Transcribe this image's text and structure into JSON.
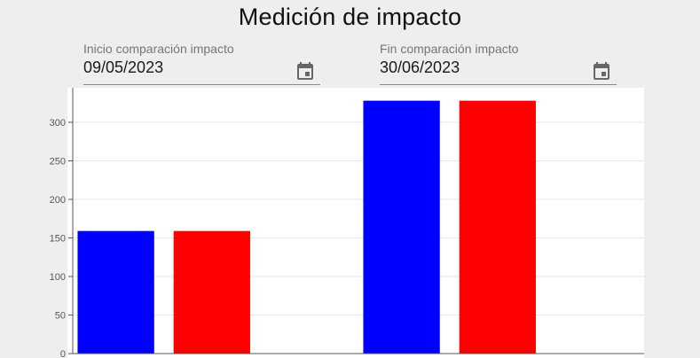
{
  "page": {
    "title": "Medición de impacto"
  },
  "date_range": {
    "start": {
      "label": "Inicio comparación impacto",
      "value": "09/05/2023",
      "icon": "calendar-icon"
    },
    "end": {
      "label": "Fin comparación impacto",
      "value": "30/06/2023",
      "icon": "calendar-icon"
    }
  },
  "chart_data": {
    "type": "bar",
    "categories": [
      "",
      ""
    ],
    "series": [
      {
        "color": "#0000ff",
        "values": [
          159,
          328
        ]
      },
      {
        "color": "#ff0000",
        "values": [
          159,
          328
        ]
      }
    ],
    "ylim": [
      0,
      340
    ],
    "yticks": [
      0,
      50,
      100,
      150,
      200,
      250,
      300
    ],
    "grid": true,
    "legend": "none"
  }
}
